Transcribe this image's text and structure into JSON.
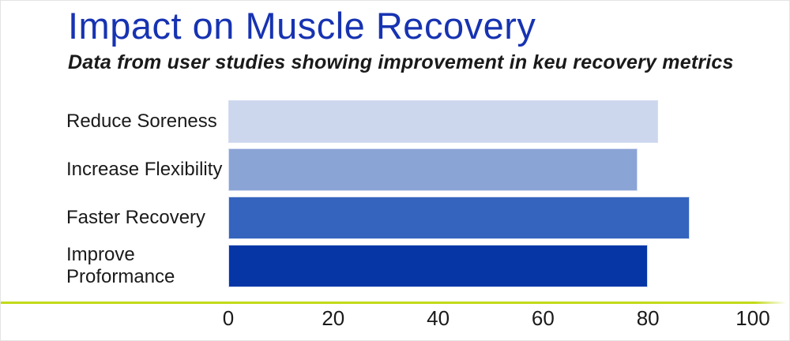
{
  "page": {
    "title": "Impact on Muscle Recovery",
    "subtitle": "Data from user studies showing improvement in keu recovery metrics"
  },
  "colors": {
    "title_text": "#1733b2",
    "body_text": "#1a1a1a",
    "axis_line": "#c2da18",
    "bar_border": "#d4ddf1"
  },
  "chart_data": {
    "type": "bar",
    "orientation": "horizontal",
    "title": "Impact on Muscle Recovery",
    "subtitle": "Data from user studies showing improvement in keu recovery metrics",
    "categories": [
      "Reduce Soreness",
      "Increase Flexibility",
      "Faster Recovery",
      "Improve Proformance"
    ],
    "values": [
      82,
      78,
      88,
      80
    ],
    "bar_colors": [
      "#ccd7ee",
      "#8ba4d6",
      "#3564be",
      "#0636a6"
    ],
    "xlabel": "",
    "ylabel": "",
    "xlim": [
      0,
      100
    ],
    "x_ticks": [
      0,
      20,
      40,
      60,
      80,
      100
    ],
    "grid": false,
    "legend": null
  }
}
